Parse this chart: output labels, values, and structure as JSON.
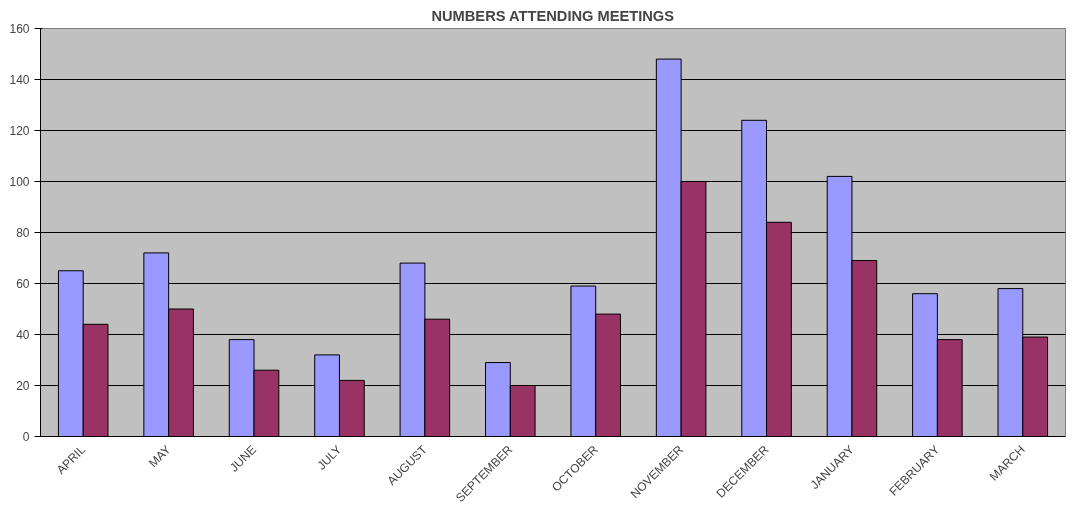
{
  "chart_data": {
    "type": "bar",
    "title": "NUMBERS ATTENDING MEETINGS",
    "categories": [
      "APRIL",
      "MAY",
      "JUNE",
      "JULY",
      "AUGUST",
      "SEPTEMBER",
      "OCTOBER",
      "NOVEMBER",
      "DECEMBER",
      "JANUARY",
      "FEBRUARY",
      "MARCH"
    ],
    "series": [
      {
        "color": "#9999ff",
        "values": [
          65,
          72,
          38,
          32,
          68,
          29,
          59,
          148,
          124,
          102,
          56,
          58
        ]
      },
      {
        "color": "#993366",
        "values": [
          44,
          50,
          26,
          22,
          46,
          20,
          48,
          100,
          84,
          69,
          38,
          39
        ]
      }
    ],
    "ylim": [
      0,
      160
    ],
    "yticks": [
      0,
      20,
      40,
      60,
      80,
      100,
      120,
      140,
      160
    ],
    "grid": "y"
  }
}
